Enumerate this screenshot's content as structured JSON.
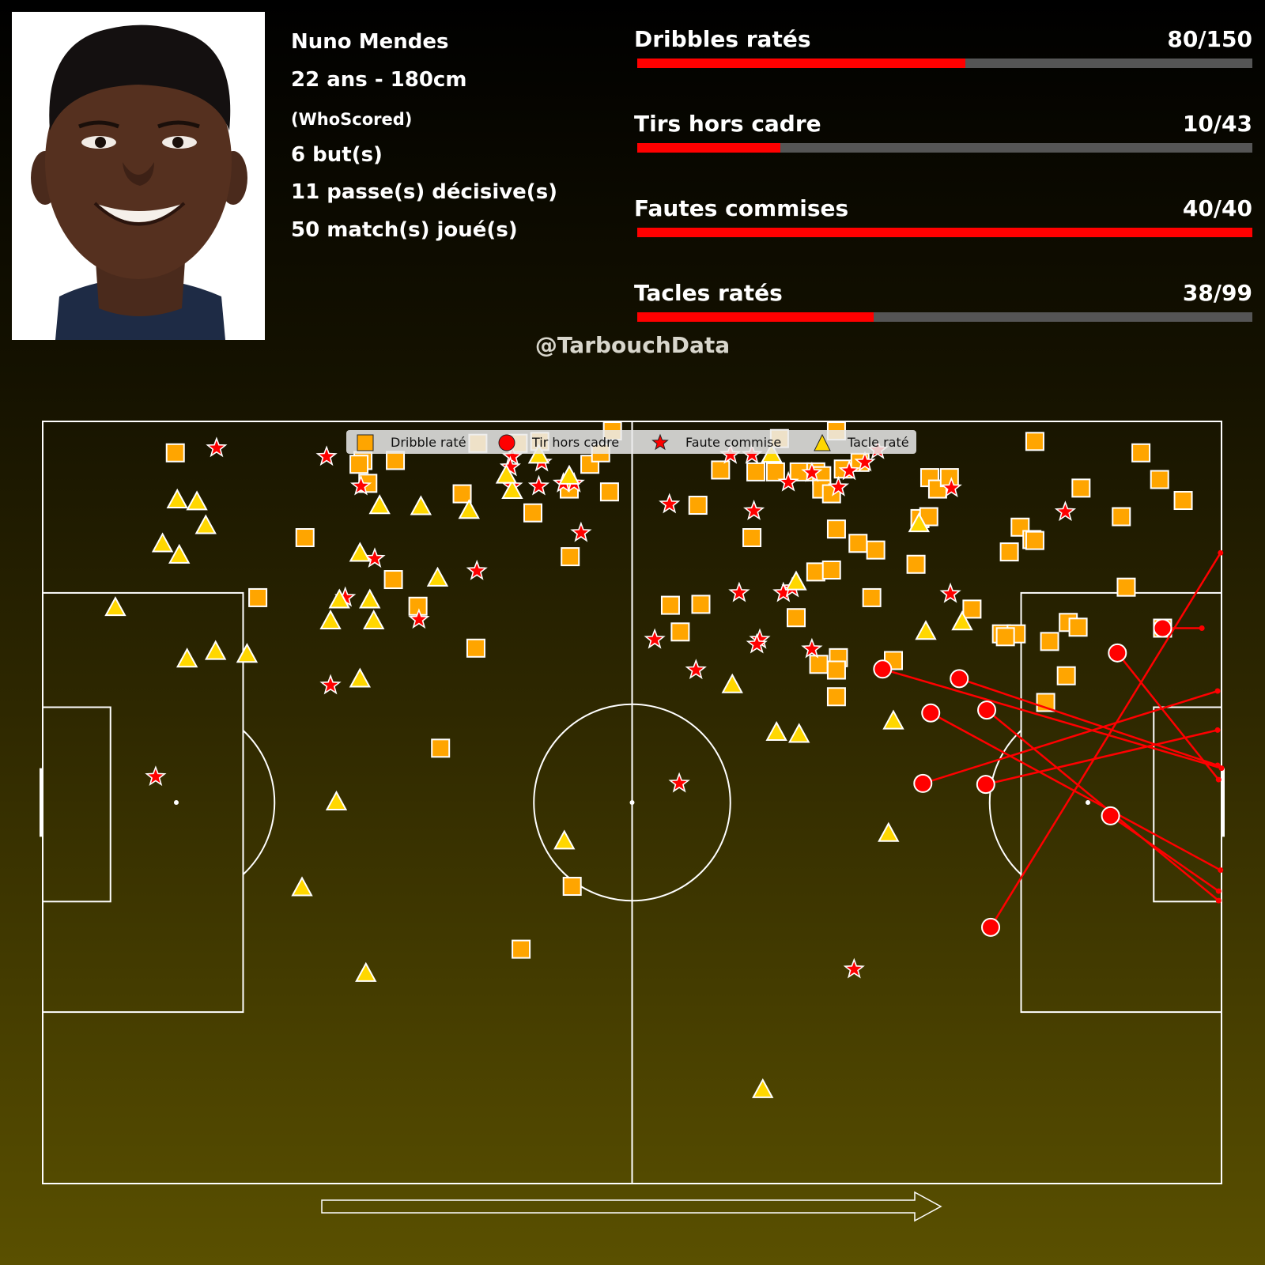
{
  "player": {
    "name": "Nuno Mendes",
    "age_height": "22 ans - 180cm",
    "source": "(WhoScored)",
    "goals": "6 but(s)",
    "assists": "11 passe(s) décisive(s)",
    "matches": "50 match(s) joué(s)"
  },
  "stats": [
    {
      "label": "Dribbles ratés",
      "value_text": "80/150",
      "value": 80,
      "total": 150
    },
    {
      "label": "Tirs hors cadre",
      "value_text": "10/43",
      "value": 10,
      "total": 43
    },
    {
      "label": "Fautes commises",
      "value_text": "40/40",
      "value": 40,
      "total": 40
    },
    {
      "label": "Tacles ratés",
      "value_text": "38/99",
      "value": 38,
      "total": 99
    }
  ],
  "watermark": "@TarbouchData",
  "colors": {
    "bar_fill": "#ff0000",
    "bar_track": "#555555",
    "dribble": "#ffa500",
    "shot": "#ff0000",
    "foul": "#ff0000",
    "tackle": "#ffd700",
    "pitch_lines": "#ffffff"
  },
  "chart_data": {
    "type": "scatter",
    "pitch": {
      "length": 120,
      "width": 80,
      "direction": "left-to-right"
    },
    "legend": {
      "placement": "top-center",
      "items": [
        {
          "key": "dribble",
          "label": "Dribble raté",
          "marker": "square"
        },
        {
          "key": "shot",
          "label": "Tir hors cadre",
          "marker": "circle"
        },
        {
          "key": "foul",
          "label": "Faute commise",
          "marker": "star"
        },
        {
          "key": "tackle",
          "label": "Tacle raté",
          "marker": "triangle"
        }
      ]
    },
    "dribbles": [
      [
        13.5,
        3.3
      ],
      [
        32.6,
        4.1
      ],
      [
        32.2,
        4.5
      ],
      [
        35.9,
        4.1
      ],
      [
        44.3,
        2.3
      ],
      [
        48.4,
        2.3
      ],
      [
        50.6,
        2.1
      ],
      [
        55.7,
        4.5
      ],
      [
        56.8,
        3.3
      ],
      [
        58.0,
        1.0
      ],
      [
        33.1,
        6.5
      ],
      [
        42.7,
        7.6
      ],
      [
        49.9,
        9.6
      ],
      [
        53.6,
        7.1
      ],
      [
        57.7,
        7.4
      ],
      [
        26.7,
        12.2
      ],
      [
        21.9,
        18.5
      ],
      [
        35.7,
        16.6
      ],
      [
        38.2,
        19.4
      ],
      [
        44.1,
        23.8
      ],
      [
        53.7,
        14.2
      ],
      [
        40.5,
        34.3
      ],
      [
        53.9,
        48.8
      ],
      [
        48.7,
        55.4
      ],
      [
        66.7,
        8.8
      ],
      [
        69.0,
        5.1
      ],
      [
        72.6,
        5.3
      ],
      [
        74.6,
        5.3
      ],
      [
        75.0,
        1.8
      ],
      [
        77.0,
        5.3
      ],
      [
        78.7,
        5.3
      ],
      [
        79.3,
        5.7
      ],
      [
        79.3,
        7.1
      ],
      [
        80.8,
        1.0
      ],
      [
        81.5,
        5.0
      ],
      [
        83.2,
        4.3
      ],
      [
        80.3,
        7.6
      ],
      [
        80.8,
        11.3
      ],
      [
        72.2,
        12.2
      ],
      [
        63.9,
        19.3
      ],
      [
        67.0,
        19.2
      ],
      [
        64.9,
        22.1
      ],
      [
        76.7,
        20.6
      ],
      [
        78.7,
        15.8
      ],
      [
        80.3,
        15.6
      ],
      [
        83.0,
        12.8
      ],
      [
        84.8,
        13.5
      ],
      [
        84.4,
        18.5
      ],
      [
        88.9,
        15.0
      ],
      [
        89.3,
        10.2
      ],
      [
        90.2,
        10.0
      ],
      [
        90.3,
        5.9
      ],
      [
        91.1,
        7.1
      ],
      [
        92.3,
        5.9
      ],
      [
        101.0,
        2.1
      ],
      [
        105.7,
        7.0
      ],
      [
        109.8,
        10.0
      ],
      [
        111.8,
        3.3
      ],
      [
        113.7,
        6.1
      ],
      [
        116.1,
        8.3
      ],
      [
        99.5,
        11.1
      ],
      [
        100.7,
        12.4
      ],
      [
        98.4,
        13.7
      ],
      [
        101.0,
        12.5
      ],
      [
        94.6,
        19.7
      ],
      [
        110.3,
        17.4
      ],
      [
        97.6,
        22.3
      ],
      [
        99.1,
        22.3
      ],
      [
        98.0,
        22.6
      ],
      [
        104.4,
        21.1
      ],
      [
        105.4,
        21.6
      ],
      [
        102.5,
        23.1
      ],
      [
        114.0,
        21.7
      ],
      [
        104.2,
        26.7
      ],
      [
        102.1,
        29.5
      ],
      [
        81.0,
        24.8
      ],
      [
        80.8,
        26.1
      ],
      [
        79.0,
        25.5
      ],
      [
        86.6,
        25.1
      ],
      [
        80.8,
        28.9
      ]
    ],
    "shots": [
      {
        "from": [
          85.5,
          26.0
        ],
        "to": [
          120.0,
          36.4
        ]
      },
      {
        "from": [
          93.3,
          27.0
        ],
        "to": [
          119.6,
          36.1
        ]
      },
      {
        "from": [
          90.4,
          30.6
        ],
        "to": [
          119.9,
          47.1
        ]
      },
      {
        "from": [
          96.1,
          30.3
        ],
        "to": [
          119.7,
          50.3
        ]
      },
      {
        "from": [
          89.6,
          38.0
        ],
        "to": [
          119.6,
          28.3
        ]
      },
      {
        "from": [
          96.0,
          38.1
        ],
        "to": [
          119.6,
          32.4
        ]
      },
      {
        "from": [
          109.4,
          24.3
        ],
        "to": [
          119.7,
          37.6
        ]
      },
      {
        "from": [
          108.7,
          41.4
        ],
        "to": [
          119.7,
          49.3
        ]
      },
      {
        "from": [
          96.5,
          53.1
        ],
        "to": [
          119.9,
          13.8
        ]
      },
      {
        "from": [
          114.0,
          21.7
        ],
        "to": [
          118.0,
          21.7
        ]
      }
    ],
    "fouls": [
      [
        17.7,
        2.8
      ],
      [
        28.9,
        3.7
      ],
      [
        32.4,
        6.8
      ],
      [
        47.8,
        3.7
      ],
      [
        47.6,
        4.8
      ],
      [
        47.8,
        6.8
      ],
      [
        50.8,
        4.3
      ],
      [
        50.5,
        6.8
      ],
      [
        53.0,
        6.5
      ],
      [
        54.1,
        6.5
      ],
      [
        54.8,
        11.7
      ],
      [
        33.8,
        14.4
      ],
      [
        30.8,
        18.5
      ],
      [
        38.3,
        20.8
      ],
      [
        44.2,
        15.7
      ],
      [
        29.3,
        27.7
      ],
      [
        11.5,
        37.3
      ],
      [
        63.8,
        8.7
      ],
      [
        62.3,
        22.9
      ],
      [
        66.5,
        26.1
      ],
      [
        64.8,
        38.0
      ],
      [
        72.4,
        9.4
      ],
      [
        70.9,
        18.0
      ],
      [
        73.0,
        22.9
      ],
      [
        75.4,
        18.0
      ],
      [
        76.3,
        17.5
      ],
      [
        72.7,
        23.4
      ],
      [
        78.3,
        23.9
      ],
      [
        75.9,
        6.4
      ],
      [
        70.0,
        3.5
      ],
      [
        72.2,
        3.5
      ],
      [
        78.3,
        5.4
      ],
      [
        81.0,
        6.9
      ],
      [
        82.1,
        5.2
      ],
      [
        83.7,
        4.3
      ],
      [
        85.0,
        3.0
      ],
      [
        92.5,
        7.0
      ],
      [
        104.1,
        9.5
      ],
      [
        92.4,
        18.1
      ],
      [
        82.6,
        57.5
      ]
    ],
    "tackles": [
      [
        13.7,
        8.3
      ],
      [
        15.7,
        8.5
      ],
      [
        16.6,
        11.0
      ],
      [
        12.2,
        12.9
      ],
      [
        13.9,
        14.1
      ],
      [
        7.4,
        19.6
      ],
      [
        14.7,
        25.0
      ],
      [
        17.6,
        24.2
      ],
      [
        20.8,
        24.5
      ],
      [
        34.3,
        8.9
      ],
      [
        38.5,
        9.0
      ],
      [
        43.4,
        9.4
      ],
      [
        32.3,
        13.9
      ],
      [
        40.2,
        16.5
      ],
      [
        30.2,
        18.8
      ],
      [
        33.3,
        18.8
      ],
      [
        29.3,
        21.0
      ],
      [
        33.7,
        21.0
      ],
      [
        32.3,
        27.1
      ],
      [
        29.9,
        40.0
      ],
      [
        26.4,
        49.0
      ],
      [
        32.9,
        58.0
      ],
      [
        47.8,
        7.3
      ],
      [
        47.2,
        5.7
      ],
      [
        50.5,
        3.6
      ],
      [
        53.6,
        5.8
      ],
      [
        53.1,
        44.1
      ],
      [
        70.2,
        27.7
      ],
      [
        74.7,
        32.7
      ],
      [
        77.0,
        32.9
      ],
      [
        76.7,
        16.9
      ],
      [
        74.2,
        3.5
      ],
      [
        86.6,
        31.5
      ],
      [
        89.9,
        22.1
      ],
      [
        93.6,
        21.1
      ],
      [
        89.2,
        10.8
      ],
      [
        86.1,
        43.3
      ],
      [
        73.3,
        70.2
      ]
    ]
  }
}
